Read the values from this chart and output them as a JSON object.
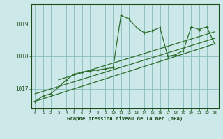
{
  "title": "Graphe pression niveau de la mer (hPa)",
  "bg_color": "#cce8e8",
  "grid_color": "#88bbbb",
  "line_color": "#2d6e2d",
  "text_color": "#1a4d1a",
  "xlim": [
    -0.5,
    23.5
  ],
  "ylim": [
    1016.4,
    1019.6
  ],
  "yticks": [
    1017,
    1018,
    1019
  ],
  "xtick_labels": [
    "0",
    "1",
    "2",
    "3",
    "4",
    "5",
    "6",
    "7",
    "8",
    "9",
    "10",
    "11",
    "12",
    "13",
    "14",
    "15",
    "16",
    "17",
    "18",
    "19",
    "20",
    "21",
    "22",
    "23"
  ],
  "series1": [
    1016.62,
    1016.78,
    1016.85,
    1017.05,
    1017.28,
    1017.45,
    1017.52,
    1017.55,
    1017.58,
    1017.62,
    1017.65,
    1019.25,
    1019.15,
    1018.88,
    1018.72,
    1018.78,
    1018.88,
    1018.0,
    1018.05,
    1018.18,
    1018.9,
    1018.82,
    1018.9,
    1018.38
  ],
  "trend1_x": [
    0,
    23
  ],
  "trend1_y": [
    1016.62,
    1018.38
  ],
  "trend2_x": [
    0,
    23
  ],
  "trend2_y": [
    1016.85,
    1018.55
  ],
  "trend3_x": [
    3,
    23
  ],
  "trend3_y": [
    1017.28,
    1018.75
  ]
}
